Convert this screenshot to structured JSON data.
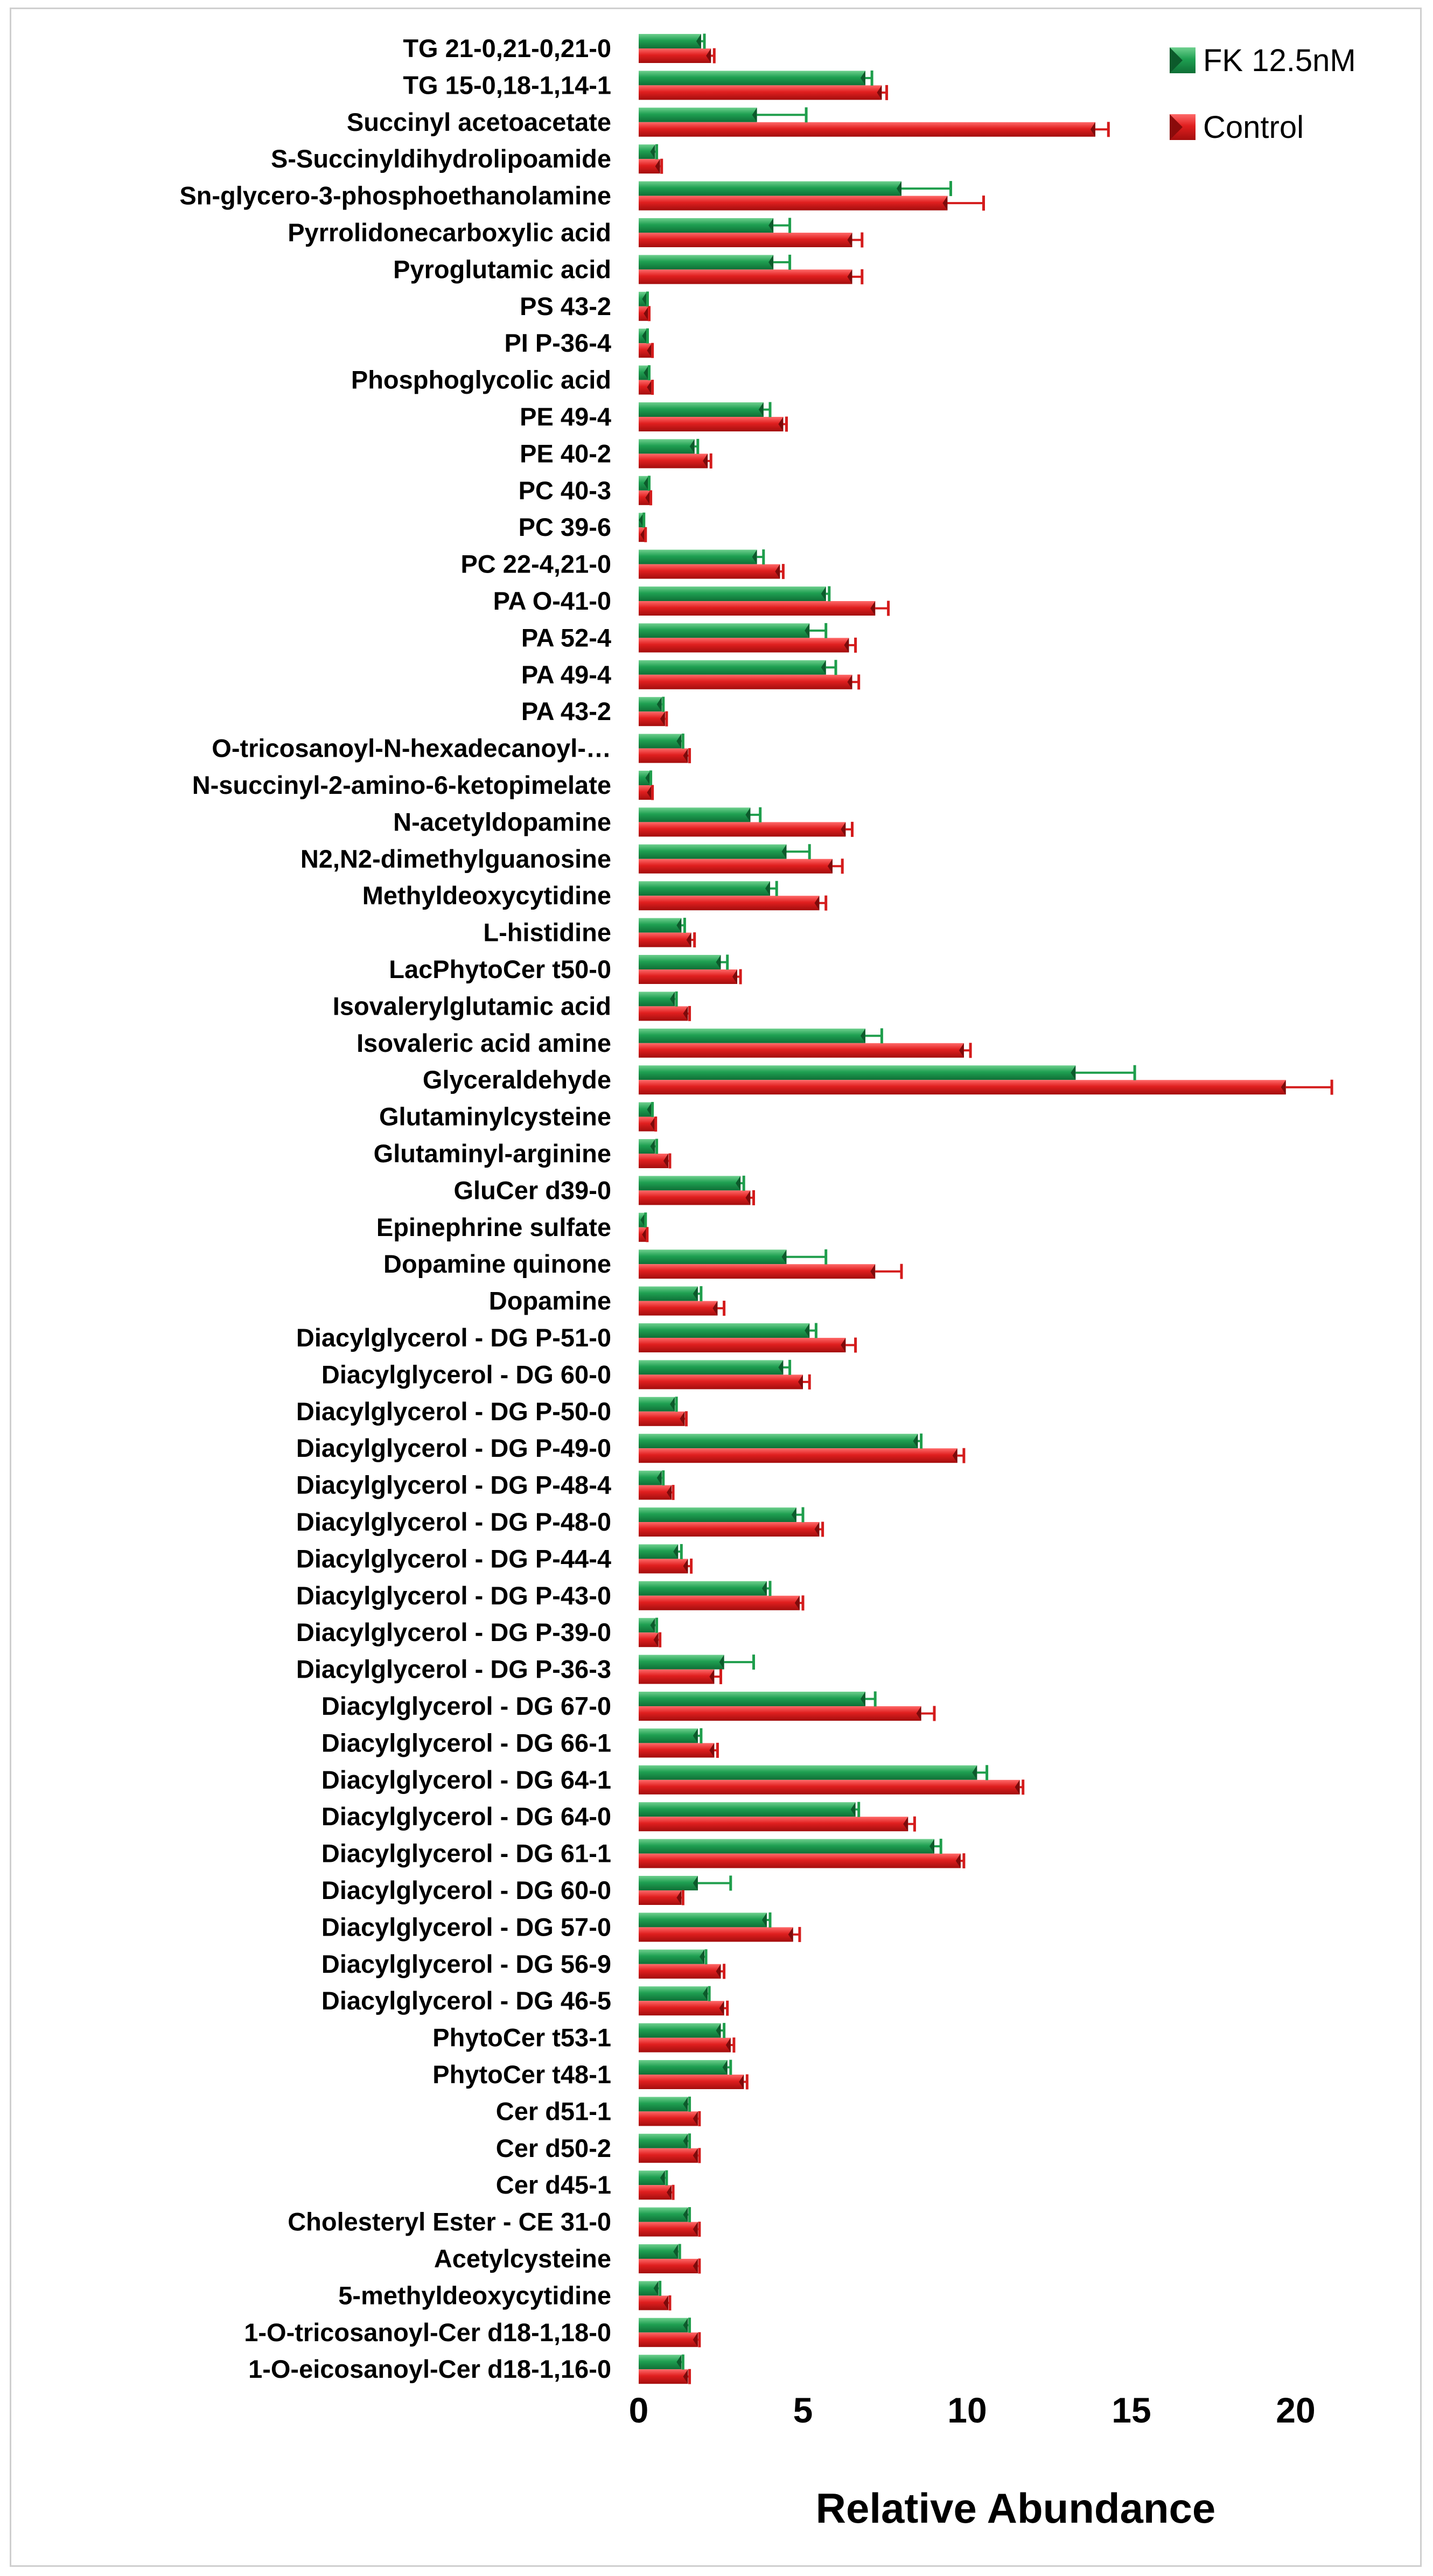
{
  "chart_data": {
    "type": "bar",
    "orientation": "horizontal",
    "title": "",
    "xlabel": "Relative Abundance",
    "ylabel": "",
    "xlim": [
      0,
      22
    ],
    "xticks": [
      0,
      5,
      10,
      15,
      20
    ],
    "grid": false,
    "legend_position": "top-right",
    "categories": [
      "TG  21-0,21-0,21-0",
      "TG  15-0,18-1,14-1",
      "Succinyl acetoacetate",
      "S-Succinyldihydrolipoamide",
      "Sn-glycero-3-phosphoethanolamine",
      "Pyrrolidonecarboxylic acid",
      "Pyroglutamic acid",
      "PS  43-2",
      "PI  P-36-4",
      "Phosphoglycolic acid",
      "PE  49-4",
      "PE  40-2",
      "PC 40-3",
      "PC 39-6",
      "PC 22-4,21-0",
      "PA O-41-0",
      "PA 52-4",
      "PA 49-4",
      "PA 43-2",
      "O-tricosanoyl-N-hexadecanoyl-…",
      "N-succinyl-2-amino-6-ketopimelate",
      "N-acetyldopamine",
      "N2,N2-dimethylguanosine",
      "Methyldeoxycytidine",
      "L-histidine",
      "LacPhytoCer  t50-0",
      "Isovalerylglutamic acid",
      "Isovaleric acid amine",
      "Glyceraldehyde",
      "Glutaminylcysteine",
      "Glutaminyl-arginine",
      "GluCer  d39-0",
      "Epinephrine sulfate",
      "Dopamine quinone",
      "Dopamine",
      "Diacylglycerol - DG P-51-0",
      "Diacylglycerol - DG 60-0",
      "Diacylglycerol - DG  P-50-0",
      "Diacylglycerol - DG  P-49-0",
      "Diacylglycerol - DG  P-48-4",
      "Diacylglycerol - DG  P-48-0",
      "Diacylglycerol - DG  P-44-4",
      "Diacylglycerol - DG  P-43-0",
      "Diacylglycerol - DG  P-39-0",
      "Diacylglycerol - DG  P-36-3",
      "Diacylglycerol - DG 67-0",
      "Diacylglycerol - DG 66-1",
      "Diacylglycerol - DG 64-1",
      "Diacylglycerol - DG 64-0",
      "Diacylglycerol - DG 61-1",
      "Diacylglycerol - DG 60-0",
      "Diacylglycerol - DG 57-0",
      "Diacylglycerol - DG 56-9",
      "Diacylglycerol - DG 46-5",
      "PhytoCer t53-1",
      "PhytoCer t48-1",
      "Cer d51-1",
      "Cer d50-2",
      "Cer d45-1",
      "Cholesteryl Ester - CE 31-0",
      "Acetylcysteine",
      "5-methyldeoxycytidine",
      "1-O-tricosanoyl-Cer d18-1,18-0",
      "1-O-eicosanoyl-Cer d18-1,16-0"
    ],
    "series": [
      {
        "name": "FK 12.5nM",
        "color": "#1a9a4a",
        "values": [
          1.9,
          6.9,
          3.6,
          0.5,
          8,
          4.1,
          4.1,
          0.25,
          0.25,
          0.3,
          3.8,
          1.7,
          0.3,
          0.15,
          3.6,
          5.7,
          5.2,
          5.7,
          0.7,
          1.3,
          0.35,
          3.4,
          4.5,
          4,
          1.3,
          2.5,
          1.1,
          6.9,
          13.3,
          0.4,
          0.5,
          3.1,
          0.2,
          4.5,
          1.8,
          5.2,
          4.4,
          1.1,
          8.5,
          0.7,
          4.8,
          1.2,
          3.9,
          0.5,
          2.6,
          6.9,
          1.8,
          10.3,
          6.6,
          9,
          1.8,
          3.9,
          2,
          2.1,
          2.5,
          2.7,
          1.5,
          1.5,
          0.8,
          1.5,
          1.2,
          0.6,
          1.5,
          1.3
        ],
        "errors": [
          0.1,
          0.2,
          1.5,
          0.05,
          1.5,
          0.5,
          0.5,
          0.02,
          0.02,
          0.02,
          0.2,
          0.1,
          0.02,
          0.01,
          0.2,
          0.1,
          0.5,
          0.3,
          0.05,
          0.05,
          0.02,
          0.3,
          0.7,
          0.2,
          0.1,
          0.2,
          0.05,
          0.5,
          1.8,
          0.02,
          0.05,
          0.1,
          0.01,
          1.2,
          0.1,
          0.2,
          0.2,
          0.05,
          0.1,
          0.05,
          0.2,
          0.1,
          0.1,
          0.05,
          0.9,
          0.3,
          0.1,
          0.3,
          0.1,
          0.2,
          1,
          0.1,
          0.05,
          0.05,
          0.1,
          0.1,
          0.05,
          0.05,
          0.05,
          0.05,
          0.05,
          0.05,
          0.05,
          0.05
        ]
      },
      {
        "name": "Control",
        "color": "#e01f1f",
        "values": [
          2.2,
          7.4,
          13.9,
          0.65,
          9.4,
          6.5,
          6.5,
          0.3,
          0.4,
          0.4,
          4.4,
          2.1,
          0.35,
          0.2,
          4.3,
          7.2,
          6.4,
          6.5,
          0.8,
          1.5,
          0.4,
          6.3,
          5.9,
          5.5,
          1.6,
          3,
          1.5,
          9.9,
          19.7,
          0.5,
          0.9,
          3.4,
          0.25,
          7.2,
          2.4,
          6.3,
          5,
          1.4,
          9.7,
          1,
          5.5,
          1.5,
          4.9,
          0.6,
          2.3,
          8.6,
          2.3,
          11.6,
          8.2,
          9.8,
          1.3,
          4.7,
          2.5,
          2.6,
          2.8,
          3.2,
          1.8,
          1.8,
          1,
          1.8,
          1.8,
          0.9,
          1.8,
          1.5
        ],
        "errors": [
          0.1,
          0.15,
          0.4,
          0.05,
          1.1,
          0.3,
          0.3,
          0.02,
          0.02,
          0.02,
          0.1,
          0.1,
          0.02,
          0.01,
          0.1,
          0.4,
          0.2,
          0.2,
          0.05,
          0.05,
          0.02,
          0.2,
          0.3,
          0.2,
          0.1,
          0.1,
          0.05,
          0.2,
          1.4,
          0.02,
          0.05,
          0.1,
          0.01,
          0.8,
          0.2,
          0.3,
          0.2,
          0.05,
          0.2,
          0.05,
          0.1,
          0.1,
          0.1,
          0.05,
          0.2,
          0.4,
          0.1,
          0.1,
          0.2,
          0.1,
          0.05,
          0.2,
          0.1,
          0.1,
          0.1,
          0.1,
          0.05,
          0.05,
          0.05,
          0.05,
          0.05,
          0.05,
          0.05,
          0.05
        ]
      }
    ]
  }
}
